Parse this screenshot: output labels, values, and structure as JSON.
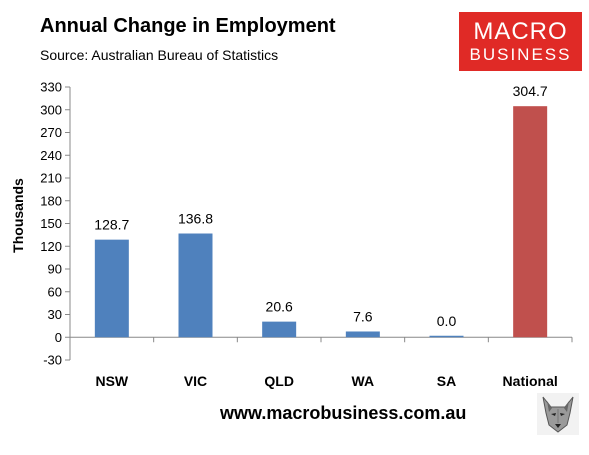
{
  "header": {
    "title": "Annual Change in Employment",
    "subtitle": "Source: Australian Bureau of Statistics"
  },
  "logo": {
    "line1": "MACRO",
    "line2": "BUSINESS",
    "color": "#e02a26"
  },
  "footer": {
    "url": "www.macrobusiness.com.au",
    "mascot_icon": "wolf-mascot-icon"
  },
  "chart_data": {
    "type": "bar",
    "title": "Annual Change in Employment",
    "subtitle": "Source: Australian Bureau of Statistics",
    "ylabel": "Thousands",
    "xlabel": "",
    "categories": [
      "NSW",
      "VIC",
      "QLD",
      "WA",
      "SA",
      "National"
    ],
    "values": [
      128.7,
      136.8,
      20.6,
      7.6,
      0.0,
      304.7
    ],
    "data_labels": [
      "128.7",
      "136.8",
      "20.6",
      "7.6",
      "0.0",
      "304.7"
    ],
    "colors": [
      "#4f81bd",
      "#4f81bd",
      "#4f81bd",
      "#4f81bd",
      "#4f81bd",
      "#c0504d"
    ],
    "ylim": [
      -30,
      330
    ],
    "yticks": [
      -30,
      0,
      30,
      60,
      90,
      120,
      150,
      180,
      210,
      240,
      270,
      300,
      330
    ],
    "grid": false,
    "legend": "none"
  }
}
